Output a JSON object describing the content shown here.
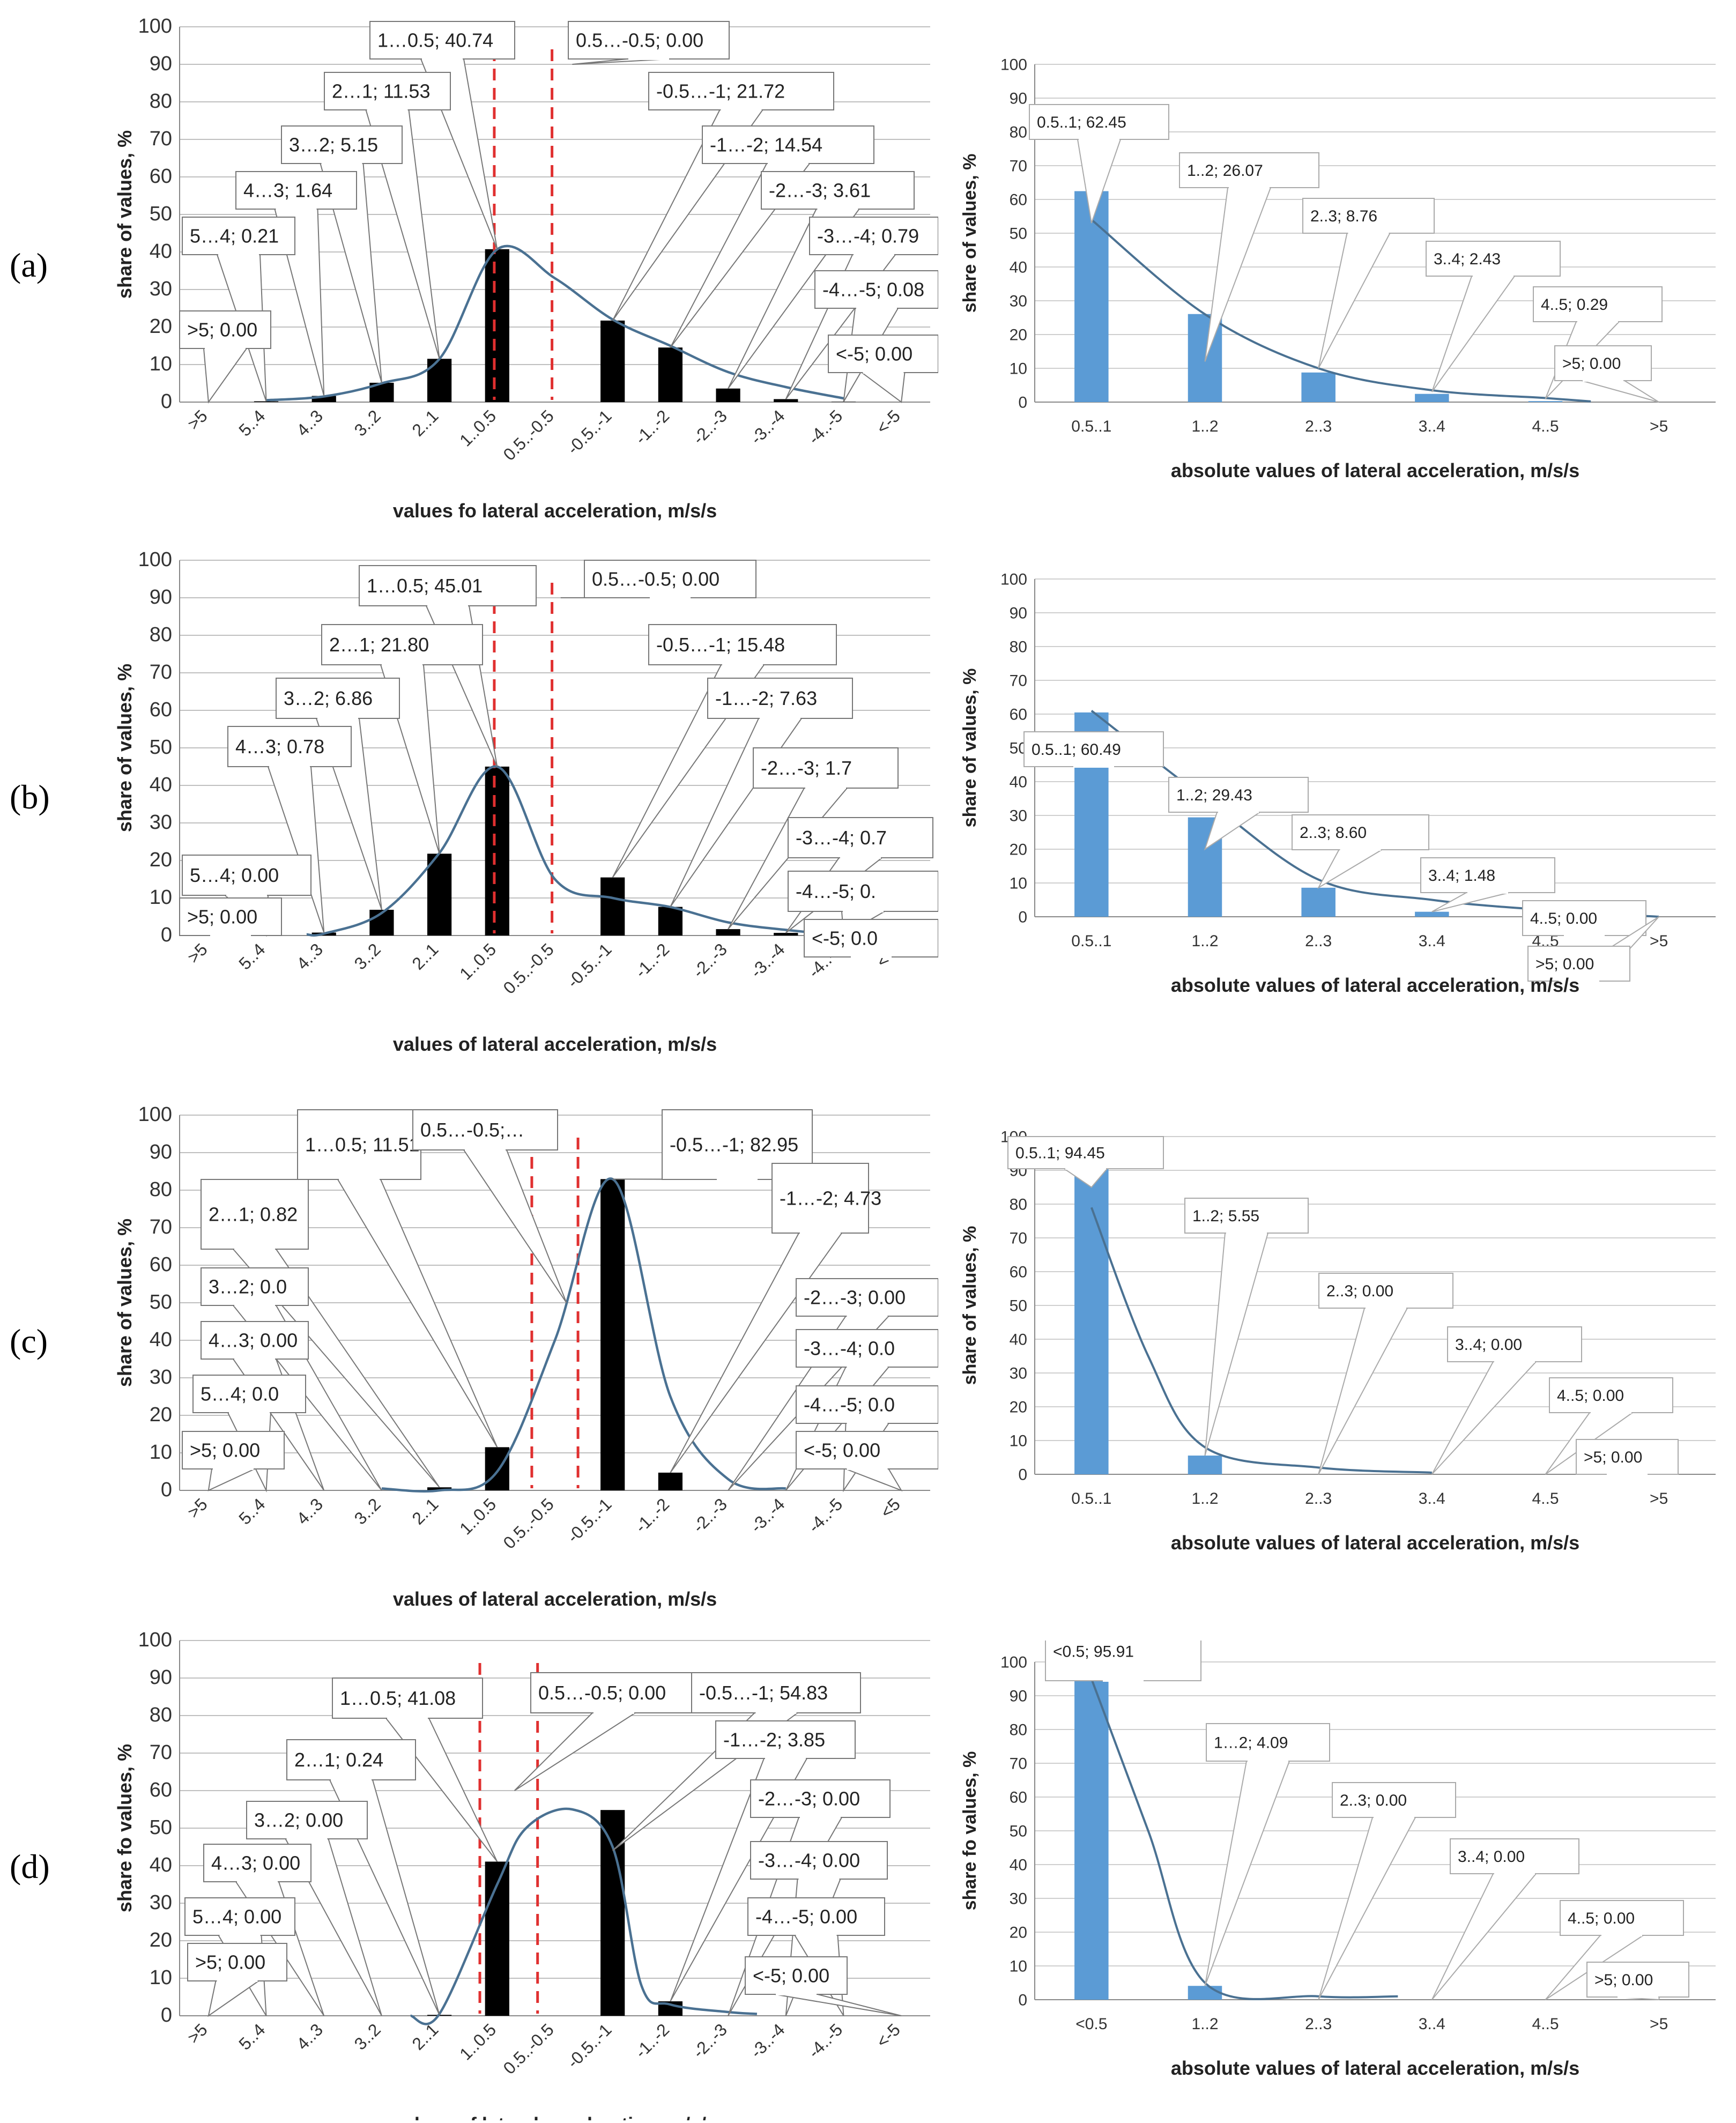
{
  "panels": [
    {
      "letter": "(a)"
    },
    {
      "letter": "(b)"
    },
    {
      "letter": "(c)"
    },
    {
      "letter": "(d)"
    }
  ],
  "colors": {
    "signed_bar": "#000000",
    "abs_bar": "#5b9bd5",
    "curve": "#4a7192",
    "dashed_line": "#e03030",
    "grid": "#bfbfbf",
    "callout_border": "#777777",
    "callout_border_light": "#aaaaaa"
  },
  "chart_data": [
    {
      "id": "a-left",
      "type": "bar",
      "ylim": [
        0,
        100
      ],
      "yticks": [
        0,
        10,
        20,
        30,
        40,
        50,
        60,
        70,
        80,
        90,
        100
      ],
      "categories": [
        ">5",
        "5..4",
        "4..3",
        "3..2",
        "2..1",
        "1..0.5",
        "0.5..-0.5",
        "-0.5..-1",
        "-1..-2",
        "-2..-3",
        "-3..-4",
        "-4..-5",
        "<-5"
      ],
      "values": [
        0,
        0.21,
        1.64,
        5.15,
        11.53,
        40.74,
        0,
        21.72,
        14.54,
        3.61,
        0.79,
        0.08,
        0
      ],
      "callouts": [
        "1…0.5; 40.74",
        "0.5…-0.5; 0.00",
        "2…1; 11.53",
        "-0.5…-1; 21.72",
        "3…2; 5.15",
        "-1…-2; 14.54",
        "4…3; 1.64",
        "-2…-3; 3.61",
        "5…4; 0.21",
        "-3…-4; 0.79",
        "-4…-5; 0.08",
        ">5; 0.00",
        "<-5; 0.00"
      ],
      "ylabel": "share of values, %",
      "xlabel": "values fo lateral acceleration, m/s/s"
    },
    {
      "id": "a-right",
      "type": "bar",
      "ylim": [
        0,
        100
      ],
      "yticks": [
        0,
        10,
        20,
        30,
        40,
        50,
        60,
        70,
        80,
        90,
        100
      ],
      "categories": [
        "0.5..1",
        "1..2",
        "2..3",
        "3..4",
        "4..5",
        ">5"
      ],
      "values": [
        62.45,
        26.07,
        8.76,
        2.43,
        0.29,
        0
      ],
      "callouts": [
        "0.5..1; 62.45",
        "1..2; 26.07",
        "2..3; 8.76",
        "3..4; 2.43",
        "4..5; 0.29",
        ">5; 0.00"
      ],
      "ylabel": "share of values, %",
      "xlabel": "absolute values of lateral acceleration, m/s/s"
    },
    {
      "id": "b-left",
      "type": "bar",
      "ylim": [
        0,
        100
      ],
      "yticks": [
        0,
        10,
        20,
        30,
        40,
        50,
        60,
        70,
        80,
        90,
        100
      ],
      "categories": [
        ">5",
        "5..4",
        "4..3",
        "3..2",
        "2..1",
        "1..0.5",
        "0.5..-0.5",
        "-0.5..-1",
        "-1..-2",
        "-2..-3",
        "-3..-4",
        "-4..-5",
        "<-5"
      ],
      "values": [
        0,
        0,
        0.78,
        6.86,
        21.8,
        45.01,
        0,
        15.48,
        7.63,
        1.7,
        0.7,
        0.1,
        0
      ],
      "callouts": [
        "1…0.5; 45.01",
        "0.5…-0.5; 0.00",
        "2…1; 21.80",
        "-0.5…-1; 15.48",
        "3…2; 6.86",
        "-1…-2; 7.63",
        "4…3; 0.78",
        "-2…-3; 1.7",
        "5…4; 0.00",
        "-3…-4; 0.7",
        ">5; 0.00",
        "-4…-5; 0.",
        "<-5; 0.0"
      ],
      "ylabel": "share of values, %",
      "xlabel": "values of lateral acceleration, m/s/s"
    },
    {
      "id": "b-right",
      "type": "bar",
      "ylim": [
        0,
        100
      ],
      "yticks": [
        0,
        10,
        20,
        30,
        40,
        50,
        60,
        70,
        80,
        90,
        100
      ],
      "categories": [
        "0.5..1",
        "1..2",
        "2..3",
        "3..4",
        "4..5",
        ">5"
      ],
      "values": [
        60.49,
        29.43,
        8.6,
        1.48,
        0,
        0
      ],
      "callouts": [
        "0.5..1; 60.49",
        "1..2; 29.43",
        "2..3; 8.60",
        "3..4; 1.48",
        "4..5; 0.00",
        ">5; 0.00"
      ],
      "ylabel": "share of values, %",
      "xlabel": "absolute values of lateral acceleration, m/s/s"
    },
    {
      "id": "c-left",
      "type": "bar",
      "ylim": [
        0,
        100
      ],
      "yticks": [
        0,
        10,
        20,
        30,
        40,
        50,
        60,
        70,
        80,
        90,
        100
      ],
      "categories": [
        ">5",
        "5..4",
        "4..3",
        "3..2",
        "2..1",
        "1..0.5",
        "0.5..-0.5",
        "-0.5..-1",
        "-1..-2",
        "-2..-3",
        "-3..-4",
        "-4..-5",
        "<5"
      ],
      "values": [
        0,
        0,
        0,
        0,
        0.82,
        11.51,
        0,
        82.95,
        4.73,
        0,
        0,
        0,
        0
      ],
      "callouts": [
        "1…0.5; 11.51",
        "0.5…-0.5;…",
        "-0.5…-1; 82.95",
        "2…1; 0.82",
        "-1…-2; 4.73",
        "3…2; 0.0",
        "-2…-3; 0.00",
        "4…3; 0.00",
        "-3…-4; 0.0",
        "5…4; 0.0",
        "-4…-5; 0.0",
        ">5; 0.00",
        "<-5; 0.00"
      ],
      "ylabel": "share of values, %",
      "xlabel": "values of lateral acceleration, m/s/s"
    },
    {
      "id": "c-right",
      "type": "bar",
      "ylim": [
        0,
        100
      ],
      "yticks": [
        0,
        10,
        20,
        30,
        40,
        50,
        60,
        70,
        80,
        90,
        100
      ],
      "categories": [
        "0.5..1",
        "1..2",
        "2..3",
        "3..4",
        "4..5",
        ">5"
      ],
      "values": [
        94.45,
        5.55,
        0,
        0,
        0,
        0
      ],
      "callouts": [
        "0.5..1; 94.45",
        "1..2; 5.55",
        "2..3; 0.00",
        "3..4; 0.00",
        "4..5; 0.00",
        ">5; 0.00"
      ],
      "ylabel": "share of values, %",
      "xlabel": "absolute values of lateral acceleration, m/s/s"
    },
    {
      "id": "d-left",
      "type": "bar",
      "ylim": [
        0,
        100
      ],
      "yticks": [
        0,
        10,
        20,
        30,
        40,
        50,
        60,
        70,
        80,
        90,
        100
      ],
      "categories": [
        ">5",
        "5..4",
        "4..3",
        "3..2",
        "2..1",
        "1..0.5",
        "0.5..-0.5",
        "-0.5..-1",
        "-1..-2",
        "-2..-3",
        "-3..-4",
        "-4..-5",
        "<-5"
      ],
      "values": [
        0,
        0,
        0,
        0,
        0.24,
        41.08,
        0,
        54.83,
        3.85,
        0,
        0,
        0,
        0
      ],
      "callouts": [
        "1…0.5; 41.08",
        "0.5…-0.5; 0.00",
        "-0.5…-1; 54.83",
        "2…1; 0.24",
        "-1…-2; 3.85",
        "3…2; 0.00",
        "-2…-3; 0.00",
        "4…3; 0.00",
        "-3…-4; 0.00",
        "5…4; 0.00",
        "-4…-5; 0.00",
        ">5; 0.00",
        "<-5; 0.00"
      ],
      "ylabel": "share fo values, %",
      "xlabel": "values of lateral acceleration, m/s/s"
    },
    {
      "id": "d-right",
      "type": "bar",
      "ylim": [
        0,
        100
      ],
      "yticks": [
        0,
        10,
        20,
        30,
        40,
        50,
        60,
        70,
        80,
        90,
        100
      ],
      "categories": [
        "<0.5",
        "1..2",
        "2..3",
        "3..4",
        "4..5",
        ">5"
      ],
      "values": [
        95.91,
        4.09,
        0,
        0,
        0,
        0
      ],
      "callouts": [
        "<0.5; 95.91",
        "1…2; 4.09",
        "2..3; 0.00",
        "3..4; 0.00",
        "4..5; 0.00",
        ">5; 0.00"
      ],
      "ylabel": "share fo values, %",
      "xlabel": "absolute values of lateral acceleration, m/s/s"
    }
  ]
}
